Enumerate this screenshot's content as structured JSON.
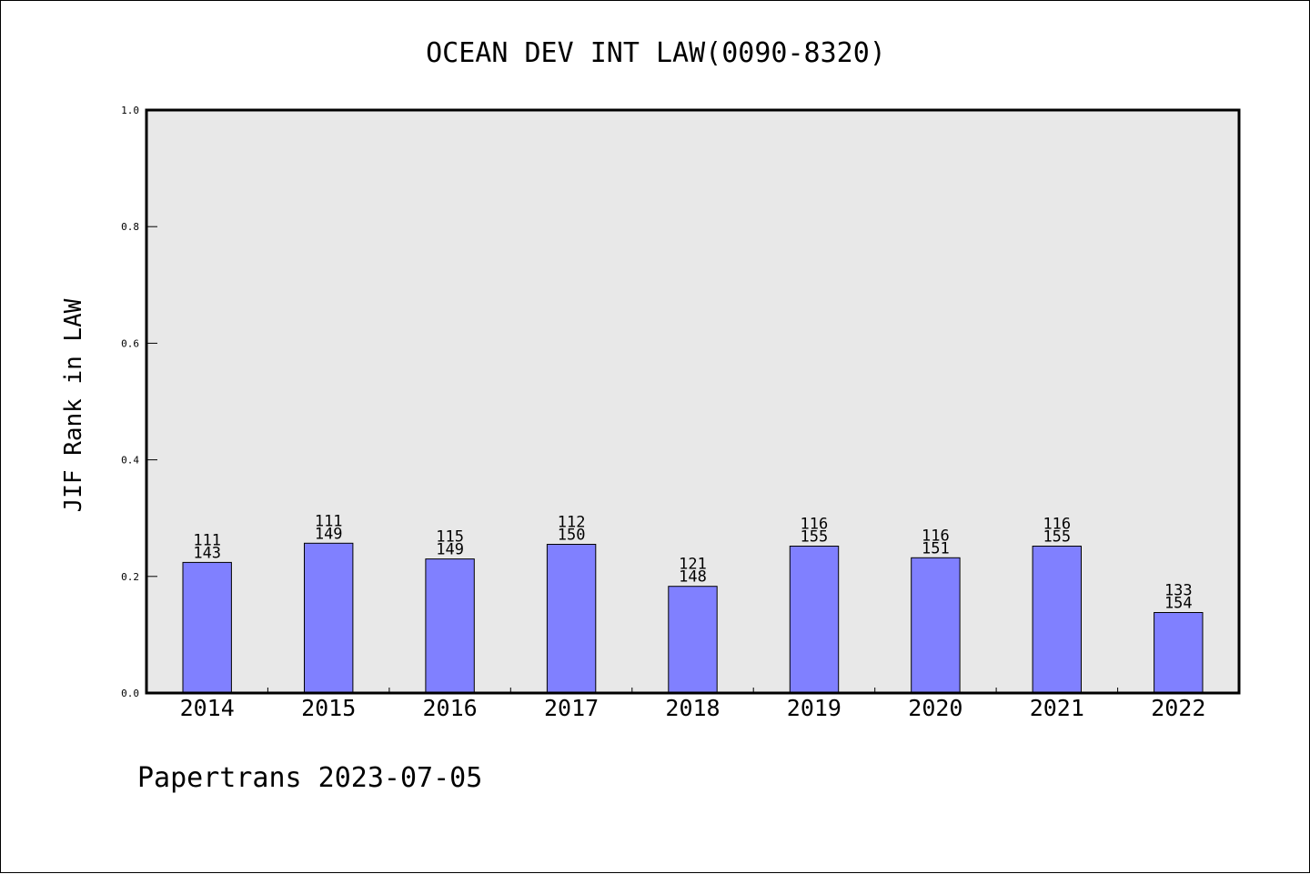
{
  "chart_data": {
    "type": "bar",
    "title": "OCEAN DEV INT LAW(0090-8320)",
    "ylabel": "JIF Rank in LAW",
    "xlabel": "",
    "ylim": [
      0,
      1.0
    ],
    "yticks": [
      "0.0",
      "0.2",
      "0.4",
      "0.6",
      "0.8",
      "1.0"
    ],
    "categories": [
      "2014",
      "2015",
      "2016",
      "2017",
      "2018",
      "2019",
      "2020",
      "2021",
      "2022"
    ],
    "values": [
      0.224,
      0.257,
      0.23,
      0.255,
      0.183,
      0.252,
      0.232,
      0.252,
      0.138
    ],
    "rank": [
      "111",
      "111",
      "115",
      "112",
      "121",
      "116",
      "116",
      "116",
      "133"
    ],
    "total": [
      "143",
      "149",
      "149",
      "150",
      "148",
      "155",
      "151",
      "155",
      "154"
    ],
    "colors": {
      "bar": "#8080ff",
      "plot_bg": "#e8e8e8",
      "axis": "#000000"
    },
    "grid": false,
    "legend": "none"
  },
  "footer": "Papertrans 2023-07-05"
}
